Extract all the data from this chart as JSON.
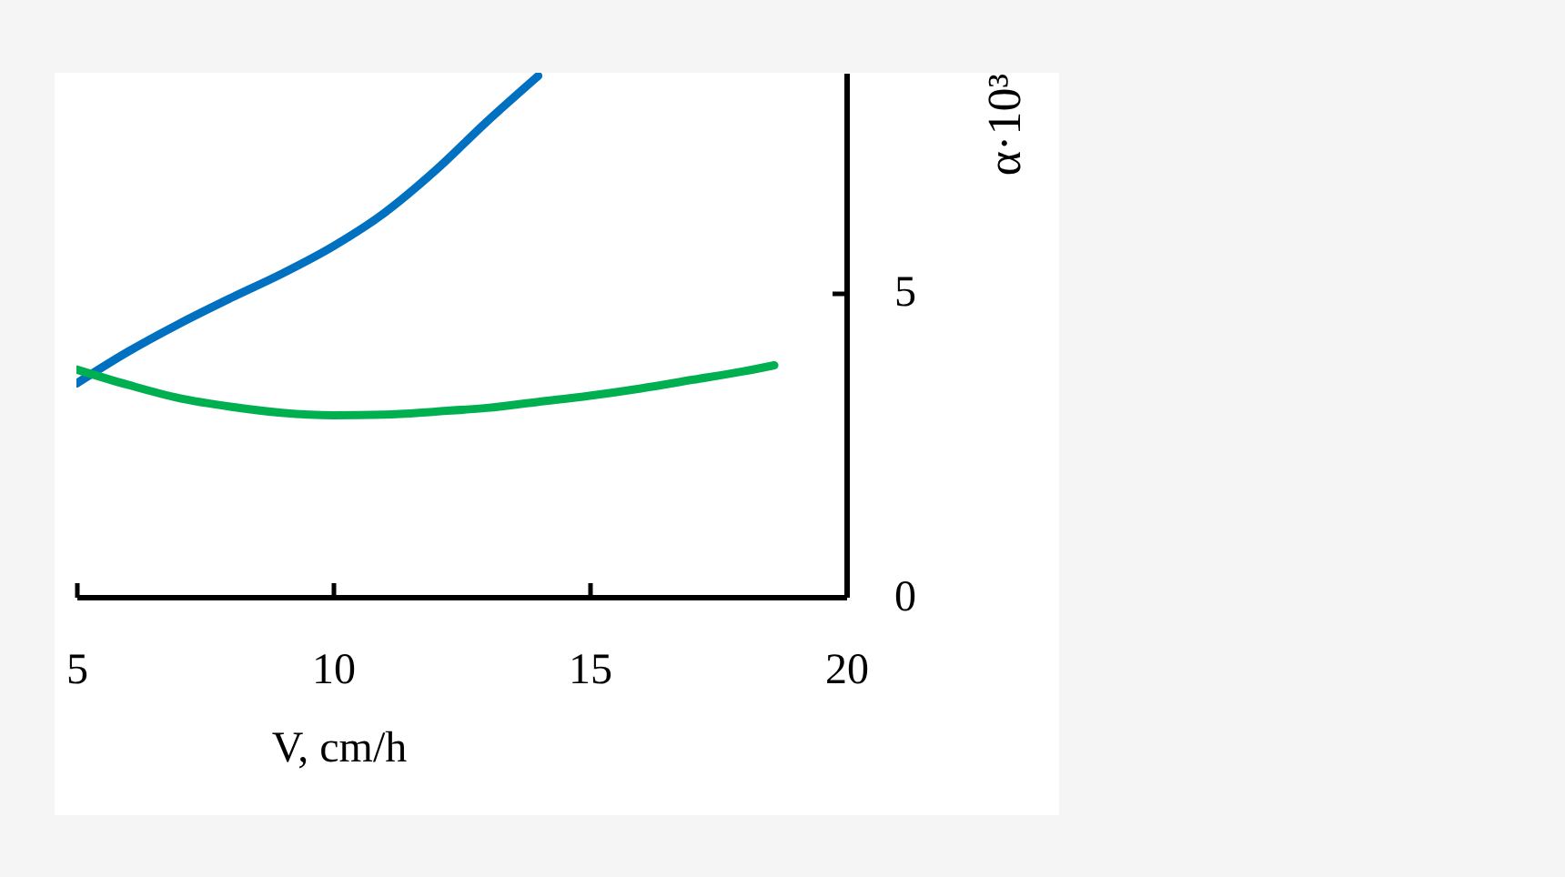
{
  "chart_data": {
    "type": "line",
    "xlabel": "V, cm/h",
    "ylabel": "α·10³",
    "series": [
      {
        "color": "#0070c0",
        "x": [
          5,
          6,
          7,
          8,
          9,
          10,
          11,
          12,
          13,
          14
        ],
        "values": [
          3.5,
          4.02,
          4.48,
          4.9,
          5.3,
          5.75,
          6.3,
          7.0,
          7.8,
          8.55
        ]
      },
      {
        "color": "#00b050",
        "x": [
          5,
          6,
          7,
          8,
          9,
          10,
          11,
          12,
          13,
          14,
          15,
          16,
          17,
          18,
          18.6
        ],
        "values": [
          3.73,
          3.48,
          3.26,
          3.12,
          3.02,
          2.98,
          2.99,
          3.04,
          3.1,
          3.2,
          3.3,
          3.42,
          3.56,
          3.7,
          3.8
        ]
      }
    ],
    "xlim": [
      5,
      20
    ],
    "ylim": [
      0,
      8.6
    ],
    "xticks": [
      5,
      10,
      15,
      20
    ],
    "yticks": [
      0,
      5
    ],
    "grid": false,
    "marker": "none",
    "line_style": "solid"
  }
}
